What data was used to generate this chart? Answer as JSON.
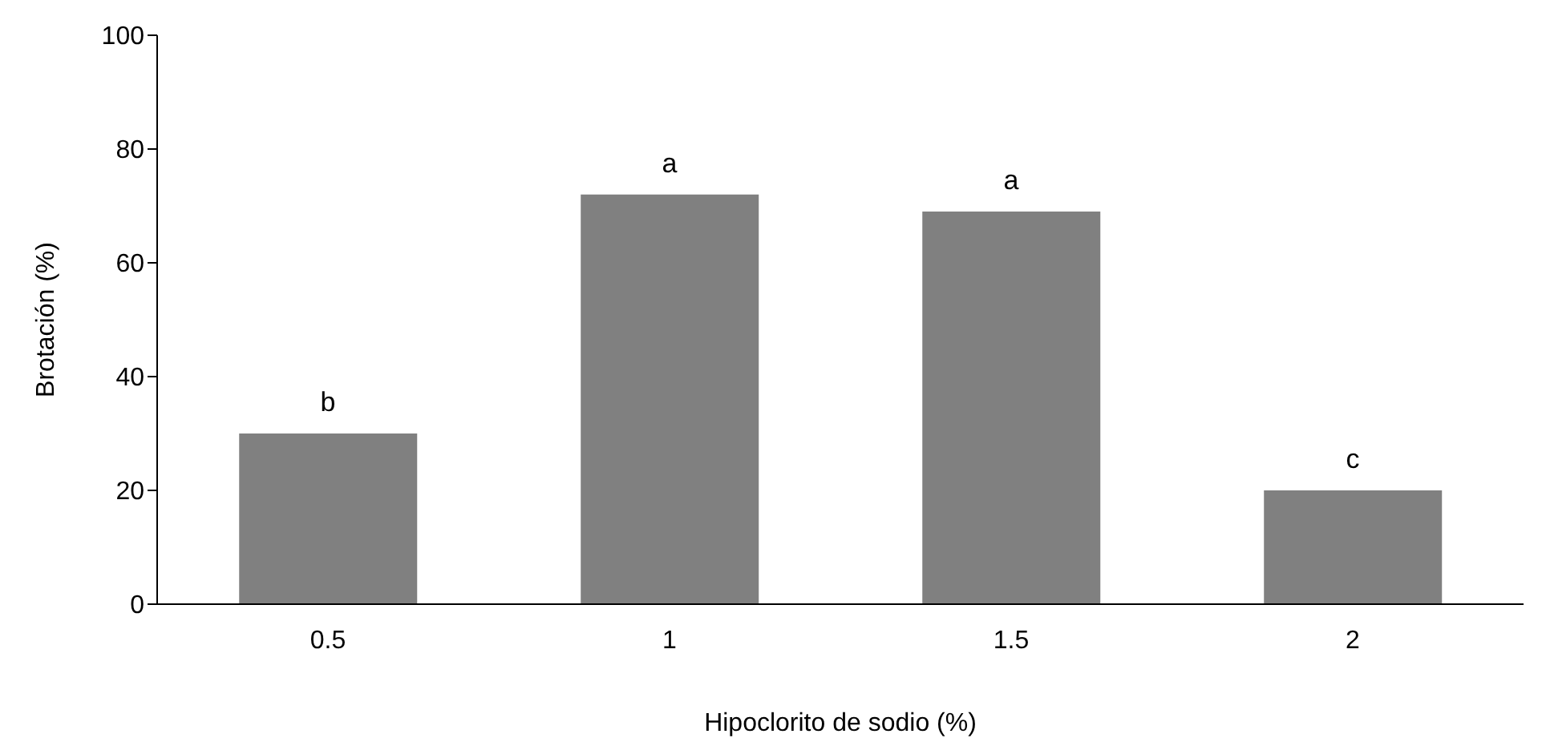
{
  "chart_data": {
    "type": "bar",
    "xlabel": "Hipoclorito de sodio (%)",
    "ylabel": "Brotación (%)",
    "categories": [
      "0.5",
      "1",
      "1.5",
      "2"
    ],
    "values": [
      30,
      72,
      69,
      20
    ],
    "color": "#808080",
    "ylim": [
      0,
      100
    ],
    "yticks": [
      0,
      20,
      40,
      60,
      80,
      100
    ],
    "grid": false,
    "legend": false,
    "annotations": [
      {
        "text": "b",
        "x": "0.5",
        "y": 30
      },
      {
        "text": "a",
        "x": "1",
        "y": 72
      },
      {
        "text": "a",
        "x": "1.5",
        "y": 69
      },
      {
        "text": "c",
        "x": "2",
        "y": 20
      }
    ]
  }
}
